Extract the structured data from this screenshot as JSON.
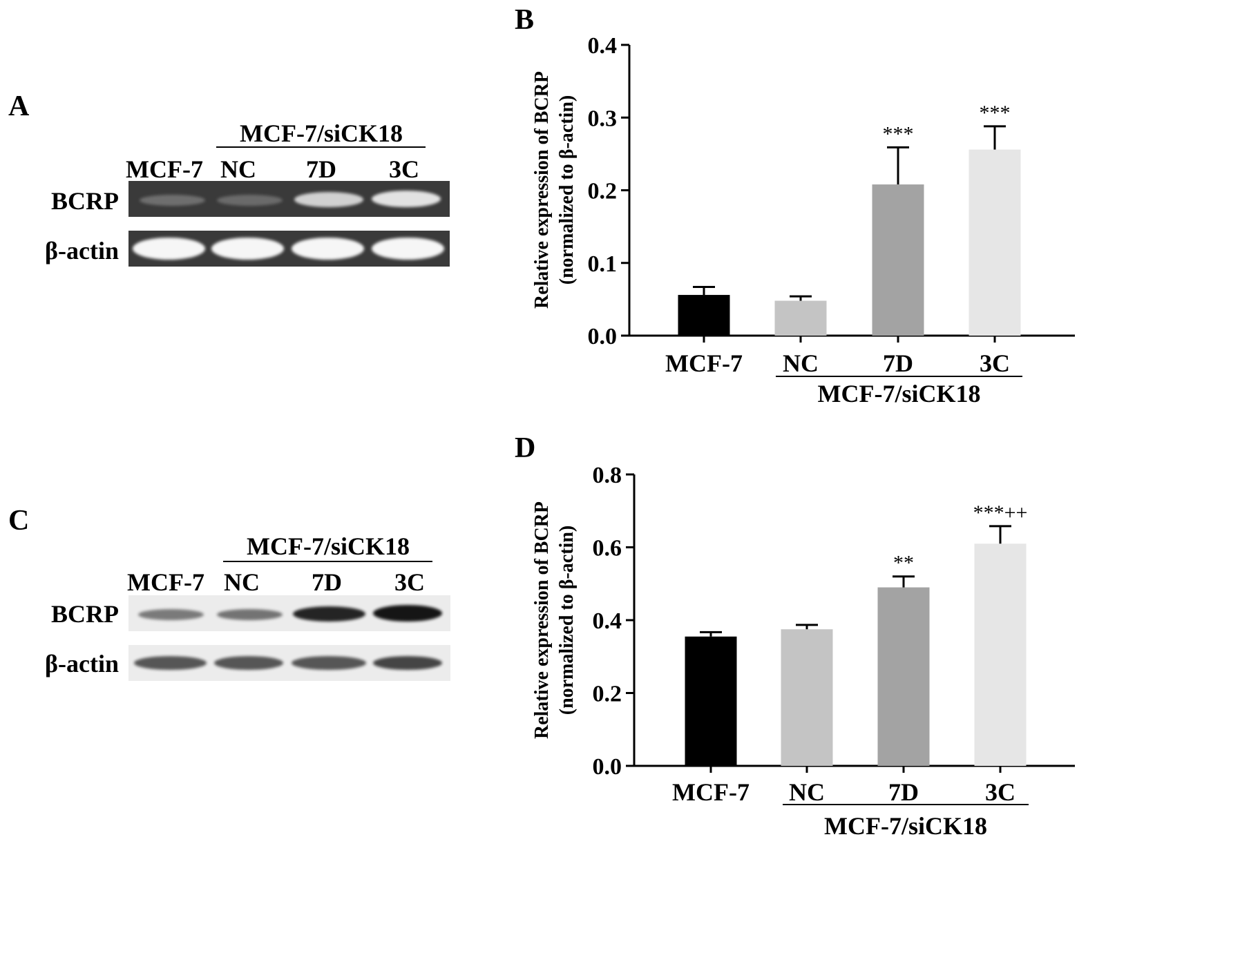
{
  "panels": {
    "A": {
      "letter": "A",
      "group_label": "MCF-7/siCK18",
      "lanes": [
        "MCF-7",
        "NC",
        "7D",
        "3C"
      ],
      "rows": [
        "BCRP",
        "β-actin"
      ],
      "band_intensity": {
        "BCRP": [
          0.35,
          0.3,
          0.8,
          0.85
        ],
        "β-actin": [
          1.0,
          1.0,
          1.0,
          1.0
        ]
      }
    },
    "C": {
      "letter": "C",
      "group_label": "MCF-7/siCK18",
      "lanes": [
        "MCF-7",
        "NC",
        "7D",
        "3C"
      ],
      "rows": [
        "BCRP",
        "β-actin"
      ],
      "band_intensity": {
        "BCRP": [
          0.55,
          0.6,
          0.9,
          0.95
        ],
        "β-actin": [
          0.75,
          0.75,
          0.75,
          0.8
        ]
      }
    }
  },
  "chart_data": [
    {
      "panel": "B",
      "type": "bar",
      "ylabel_line1": "Relative expression of BCRP",
      "ylabel_line2": "(normalized to β-actin)",
      "categories": [
        "MCF-7",
        "NC",
        "7D",
        "3C"
      ],
      "group_label": "MCF-7/siCK18",
      "values": [
        0.056,
        0.048,
        0.208,
        0.256
      ],
      "errors": [
        0.011,
        0.006,
        0.051,
        0.032
      ],
      "annotations": [
        "",
        "",
        "***",
        "***"
      ],
      "colors": [
        "#000000",
        "#c4c4c4",
        "#a3a3a3",
        "#e6e6e6"
      ],
      "ylim": [
        0,
        0.4
      ],
      "yticks": [
        "0.0",
        "0.1",
        "0.2",
        "0.3",
        "0.4"
      ]
    },
    {
      "panel": "D",
      "type": "bar",
      "ylabel_line1": "Relative expression of BCRP",
      "ylabel_line2": "(normalized to β-actin)",
      "categories": [
        "MCF-7",
        "NC",
        "7D",
        "3C"
      ],
      "group_label": "MCF-7/siCK18",
      "values": [
        0.355,
        0.375,
        0.49,
        0.61
      ],
      "errors": [
        0.012,
        0.012,
        0.03,
        0.048
      ],
      "annotations": [
        "",
        "",
        "**",
        "***++"
      ],
      "colors": [
        "#000000",
        "#c4c4c4",
        "#a3a3a3",
        "#e6e6e6"
      ],
      "ylim": [
        0,
        0.8
      ],
      "yticks": [
        "0.0",
        "0.2",
        "0.4",
        "0.6",
        "0.8"
      ]
    }
  ]
}
